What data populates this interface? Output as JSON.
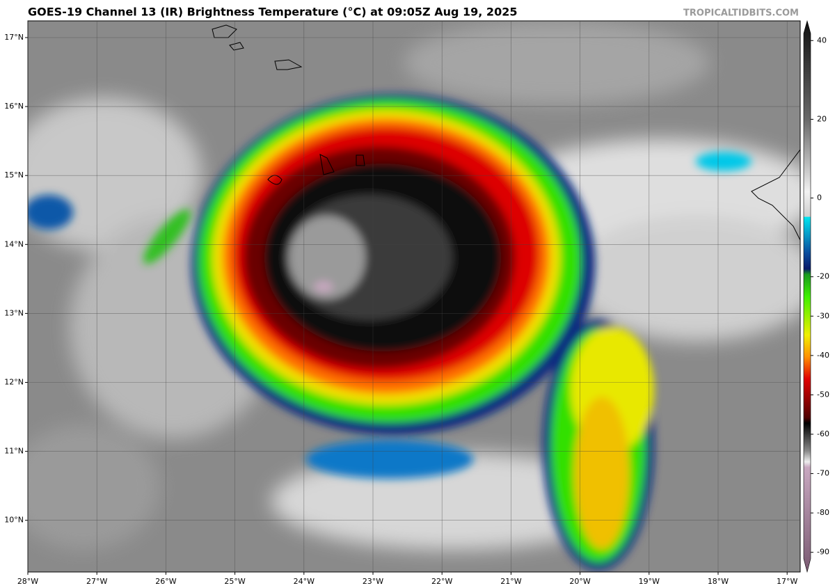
{
  "header": {
    "title": "GOES-19 Channel 13 (IR) Brightness Temperature (°C) at 09:05Z Aug 19, 2025",
    "credit": "TROPICALTIDBITS.COM"
  },
  "map": {
    "lat_labels": [
      "17°N",
      "16°N",
      "15°N",
      "14°N",
      "13°N",
      "12°N",
      "11°N",
      "10°N"
    ],
    "lon_labels": [
      "28°W",
      "27°W",
      "26°W",
      "25°W",
      "24°W",
      "23°W",
      "22°W",
      "21°W",
      "20°W",
      "19°W",
      "18°W",
      "17°W"
    ]
  },
  "colorbar": {
    "lim": [
      -95,
      45
    ],
    "ticks": [
      40,
      20,
      0,
      -20,
      -30,
      -40,
      -50,
      -60,
      -70,
      -80,
      -90
    ]
  }
}
